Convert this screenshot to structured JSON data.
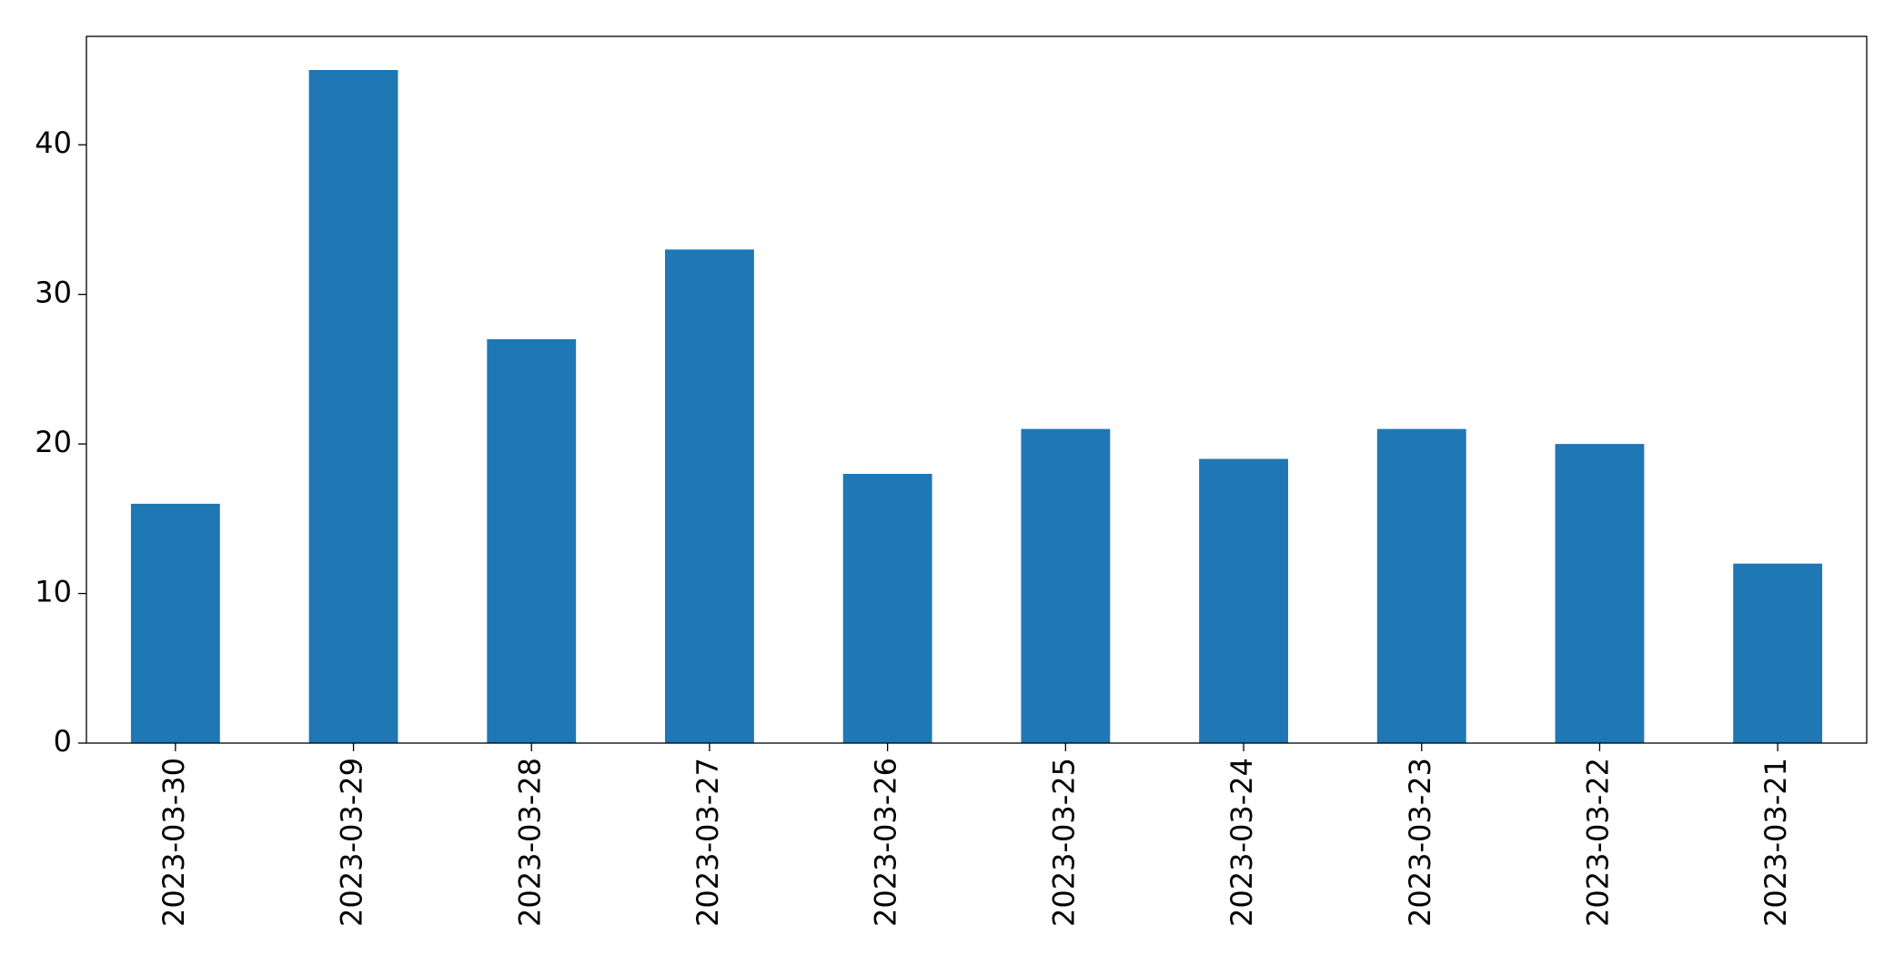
{
  "chart_data": {
    "type": "bar",
    "categories": [
      "2023-03-30",
      "2023-03-29",
      "2023-03-28",
      "2023-03-27",
      "2023-03-26",
      "2023-03-25",
      "2023-03-24",
      "2023-03-23",
      "2023-03-22",
      "2023-03-21"
    ],
    "values": [
      16,
      45,
      27,
      33,
      18,
      21,
      19,
      21,
      20,
      12
    ],
    "color": "#1f77b4",
    "ylim": [
      0,
      47.25
    ],
    "yticks": [
      0,
      10,
      20,
      30,
      40
    ],
    "grid": false
  }
}
